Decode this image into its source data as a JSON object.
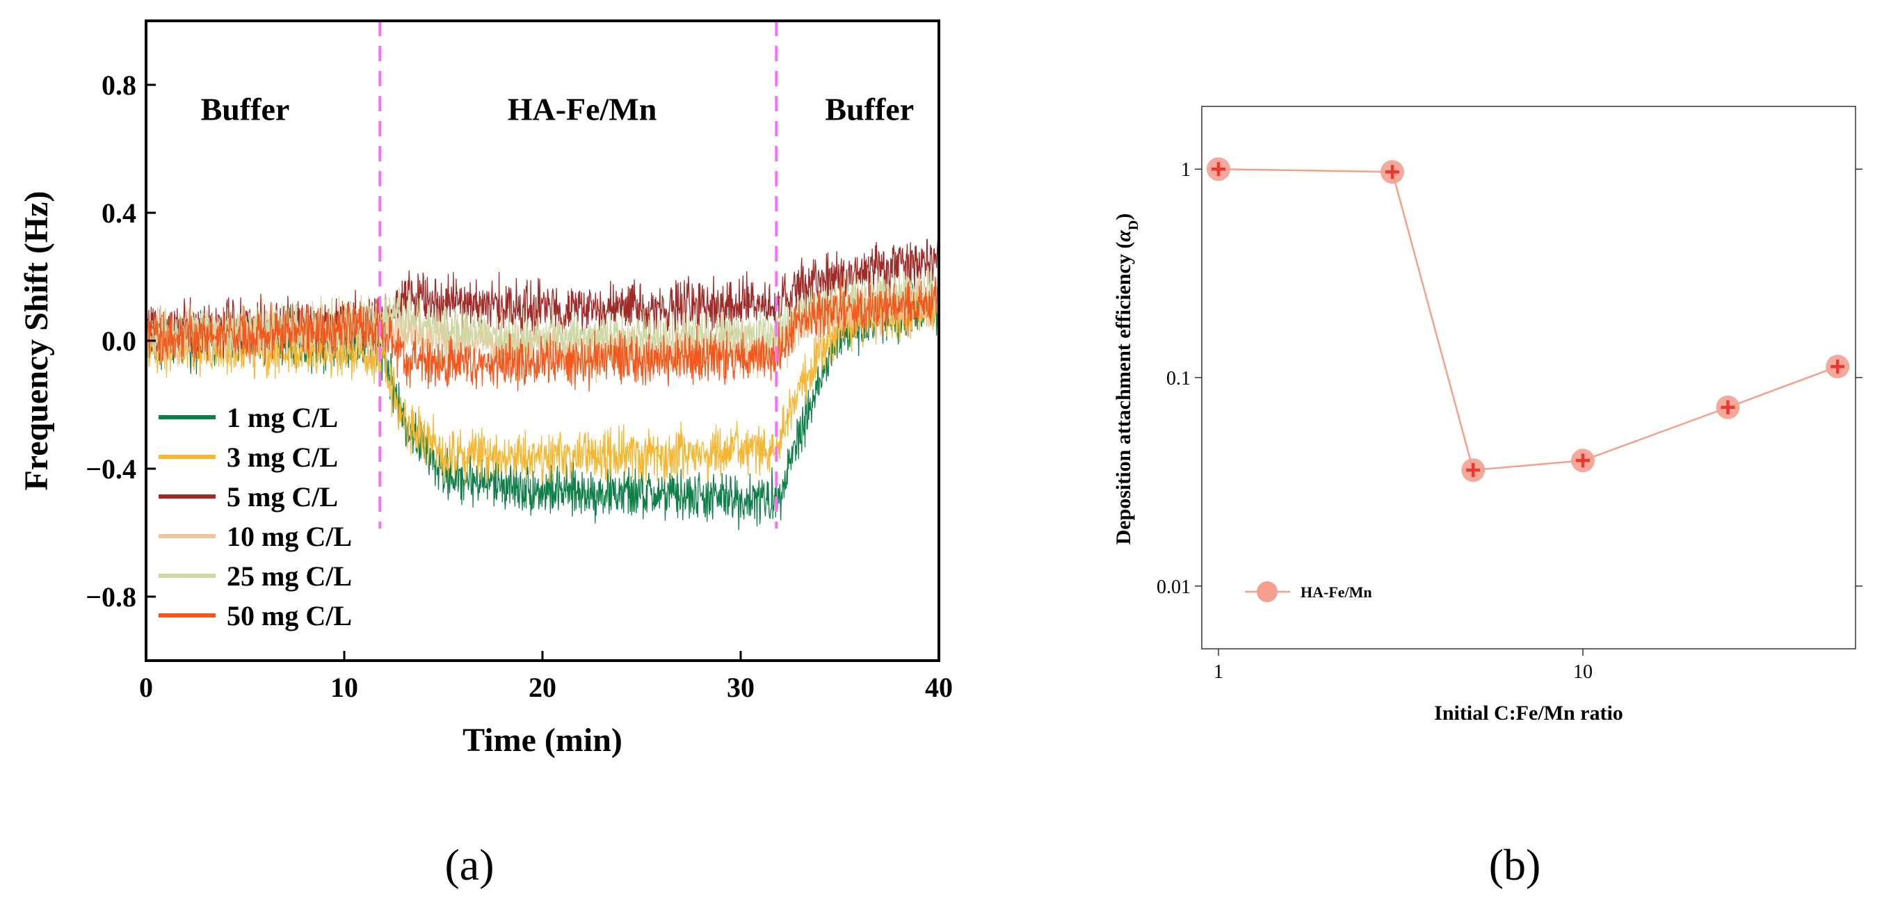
{
  "chart_data": [
    {
      "type": "line",
      "panel_label": "(a)",
      "xlabel": "Time (min)",
      "ylabel": "Frequency Shift (Hz)",
      "xlim": [
        0,
        40
      ],
      "ylim": [
        -1.0,
        1.0
      ],
      "xticks": [
        0,
        10,
        20,
        30,
        40
      ],
      "xtick_labels": [
        "0",
        "10",
        "20",
        "30",
        "40"
      ],
      "yticks": [
        -0.8,
        -0.4,
        0.0,
        0.4,
        0.8
      ],
      "ytick_labels": [
        "−0.8",
        "−0.4",
        "0.0",
        "0.4",
        "0.8"
      ],
      "grid": false,
      "legend_position": "bottom-left",
      "region_labels": [
        {
          "label": "Buffer",
          "x": 5.0,
          "y": 0.69
        },
        {
          "label": "HA-Fe/Mn",
          "x": 22.0,
          "y": 0.69
        },
        {
          "label": "Buffer",
          "x": 36.5,
          "y": 0.69
        }
      ],
      "vlines": [
        {
          "x": 11.8,
          "color": "#f075f0"
        },
        {
          "x": 31.8,
          "color": "#f075f0"
        }
      ],
      "noise_amplitude": 0.055,
      "x": [
        0,
        11.8,
        13,
        15,
        20,
        25,
        31.8,
        33,
        35,
        40
      ],
      "series": [
        {
          "name": "1 mg C/L",
          "color": "#0e7f48",
          "values": [
            0.0,
            0.0,
            -0.25,
            -0.42,
            -0.47,
            -0.48,
            -0.5,
            -0.28,
            0.02,
            0.12
          ]
        },
        {
          "name": "3 mg C/L",
          "color": "#f5b731",
          "values": [
            -0.02,
            -0.04,
            -0.25,
            -0.35,
            -0.36,
            -0.36,
            -0.34,
            -0.15,
            0.05,
            0.1
          ]
        },
        {
          "name": "5 mg C/L",
          "color": "#9f2a27",
          "values": [
            0.03,
            0.07,
            0.14,
            0.12,
            0.1,
            0.1,
            0.11,
            0.16,
            0.2,
            0.26
          ]
        },
        {
          "name": "10 mg C/L",
          "color": "#f2c49a",
          "values": [
            0.01,
            0.03,
            0.02,
            0.0,
            -0.03,
            -0.04,
            -0.03,
            0.05,
            0.08,
            0.12
          ]
        },
        {
          "name": "25 mg C/L",
          "color": "#cdd8a4",
          "values": [
            0.02,
            0.05,
            0.08,
            0.03,
            0.01,
            0.01,
            0.02,
            0.08,
            0.12,
            0.16
          ]
        },
        {
          "name": "50 mg C/L",
          "color": "#f4561b",
          "values": [
            0.01,
            0.04,
            -0.06,
            -0.07,
            -0.06,
            -0.06,
            -0.05,
            0.07,
            0.1,
            0.12
          ]
        }
      ]
    },
    {
      "type": "line",
      "panel_label": "(b)",
      "xlabel": "Initial C:Fe/Mn ratio",
      "ylabel": "Deposition attachment efficiency (αD)",
      "ylabel_main": "Deposition attachment efficiency (",
      "ylabel_symbol": "α",
      "ylabel_sub": "D",
      "ylabel_close": ")",
      "xscale": "log",
      "yscale": "log",
      "xlim": [
        0.9,
        56
      ],
      "ylim": [
        0.005,
        2.0
      ],
      "xticks": [
        1,
        10
      ],
      "xtick_labels": [
        "1",
        "10"
      ],
      "yticks": [
        0.01,
        0.1,
        1
      ],
      "ytick_labels": [
        "0.01",
        "0.1",
        "1"
      ],
      "grid": false,
      "legend_position": "bottom-left",
      "series": [
        {
          "name": "HA-Fe/Mn",
          "color": "#f4a08f",
          "marker_edge": "#e83a30",
          "x": [
            1,
            3,
            5,
            10,
            25,
            50
          ],
          "y": [
            1.0,
            0.97,
            0.036,
            0.04,
            0.072,
            0.113
          ]
        }
      ]
    }
  ]
}
